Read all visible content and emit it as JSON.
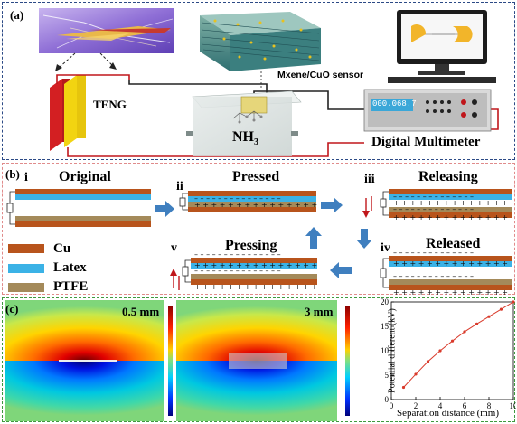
{
  "panel_a": {
    "label": "(a)",
    "teng_label": "TENG",
    "sensor_label": "Mxene/CuO sensor",
    "gas_label": "NH",
    "gas_sub": "3",
    "meter_label": "Digital Multimeter",
    "meter_reading": "000.068.7",
    "colors": {
      "wire": "#c0161b",
      "meter_screen": "#3aa7d8",
      "leaf": "#f2b52a"
    }
  },
  "panel_b": {
    "label": "(b)",
    "stages": [
      {
        "numeral": "i",
        "title": "Original"
      },
      {
        "numeral": "ii",
        "title": "Pressed"
      },
      {
        "numeral": "iii",
        "title": "Releasing"
      },
      {
        "numeral": "iv",
        "title": "Released"
      },
      {
        "numeral": "v",
        "title": "Pressing"
      }
    ],
    "legend": [
      {
        "name": "Cu",
        "color": "#b8541c"
      },
      {
        "name": "Latex",
        "color": "#3bb2e6"
      },
      {
        "name": "PTFE",
        "color": "#a48a5a"
      }
    ],
    "arrow_color": "#3f7fbf"
  },
  "panel_c": {
    "label": "(c)",
    "map1_label": "0.5 mm",
    "map2_label": "3 mm",
    "chart_data": {
      "type": "line",
      "xlabel": "Separation distance (mm)",
      "ylabel": "Potential different (kV)",
      "xlim": [
        0,
        10
      ],
      "ylim": [
        0,
        20
      ],
      "xticks": [
        "0",
        "2",
        "4",
        "6",
        "8",
        "10"
      ],
      "yticks": [
        "0",
        "5",
        "10",
        "15",
        "20"
      ],
      "x": [
        1,
        2,
        3,
        4,
        5,
        6,
        7,
        8,
        9,
        10
      ],
      "values": [
        2.5,
        5.2,
        7.8,
        10.0,
        12.0,
        13.9,
        15.5,
        17.0,
        18.5,
        20.0
      ],
      "color": "#d93a2b"
    }
  }
}
